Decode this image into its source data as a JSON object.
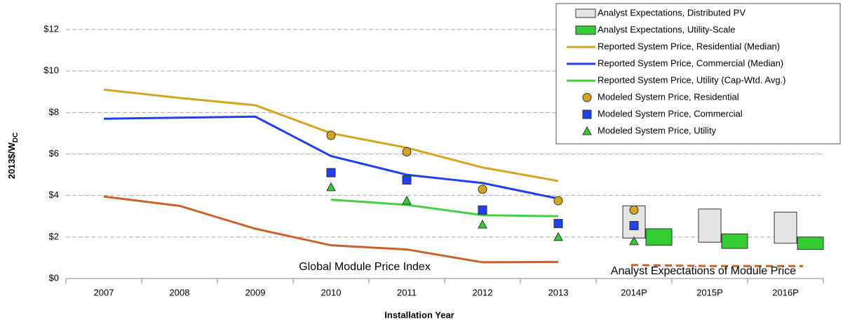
{
  "chart_data": {
    "type": "combo",
    "categories": [
      "2007",
      "2008",
      "2009",
      "2010",
      "2011",
      "2012",
      "2013",
      "2014P",
      "2015P",
      "2016P"
    ],
    "x_label": "Installation Year",
    "y_label": "2013$/W",
    "y_label_sub": "DC",
    "ylim": [
      0,
      12
    ],
    "yticks": [
      {
        "value": 0,
        "label": "$0"
      },
      {
        "value": 2,
        "label": "$2"
      },
      {
        "value": 4,
        "label": "$4"
      },
      {
        "value": 6,
        "label": "$6"
      },
      {
        "value": 8,
        "label": "$8"
      },
      {
        "value": 10,
        "label": "$10"
      },
      {
        "value": 12,
        "label": "$12"
      }
    ],
    "grid": true,
    "legend": "top-right",
    "series": [
      {
        "name": "Analyst Expectations, Distributed PV",
        "kind": "range",
        "offset": "left",
        "color": "#e6e6e6",
        "low": [
          null,
          null,
          null,
          null,
          null,
          null,
          null,
          1.95,
          1.75,
          1.7
        ],
        "high": [
          null,
          null,
          null,
          null,
          null,
          null,
          null,
          3.5,
          3.35,
          3.2
        ]
      },
      {
        "name": "Analyst Expectations, Utility-Scale",
        "kind": "range",
        "offset": "right",
        "color": "#33cc33",
        "low": [
          null,
          null,
          null,
          null,
          null,
          null,
          null,
          1.6,
          1.45,
          1.4
        ],
        "high": [
          null,
          null,
          null,
          null,
          null,
          null,
          null,
          2.4,
          2.15,
          2.0
        ]
      },
      {
        "name": "Reported System Price, Residential (Median)",
        "kind": "line",
        "color": "#d4a520",
        "values": [
          9.1,
          8.7,
          8.35,
          7.0,
          6.3,
          5.35,
          4.7,
          null,
          null,
          null
        ]
      },
      {
        "name": "Reported System Price, Commercial (Median)",
        "kind": "line",
        "color": "#1f3ff0",
        "values": [
          7.7,
          7.75,
          7.8,
          5.9,
          5.0,
          4.6,
          3.85,
          null,
          null,
          null
        ]
      },
      {
        "name": "Reported System Price, Utility (Cap-Wtd. Avg.)",
        "kind": "line",
        "color": "#44d044",
        "values": [
          null,
          null,
          null,
          3.8,
          3.55,
          3.05,
          3.0,
          null,
          null,
          null
        ]
      },
      {
        "name": "Modeled System Price, Residential",
        "kind": "circle",
        "color": "#d4a520",
        "values": [
          null,
          null,
          null,
          6.9,
          6.1,
          4.3,
          3.75,
          3.3,
          null,
          null
        ]
      },
      {
        "name": "Modeled System Price, Commercial",
        "kind": "square",
        "color": "#1f3ff0",
        "values": [
          null,
          null,
          null,
          5.1,
          4.75,
          3.3,
          2.65,
          2.55,
          null,
          null
        ]
      },
      {
        "name": "Modeled System Price, Utility",
        "kind": "triangle",
        "color": "#33cc33",
        "values": [
          null,
          null,
          null,
          4.4,
          3.75,
          2.6,
          2.0,
          1.8,
          null,
          null
        ]
      },
      {
        "name": "Global Module Price Index",
        "kind": "line",
        "annotate": true,
        "color": "#c8622a",
        "values": [
          3.95,
          3.5,
          2.4,
          1.6,
          1.4,
          0.78,
          0.8,
          null,
          null,
          null
        ]
      },
      {
        "name": "Analyst Expectations of Module Price",
        "kind": "dashed",
        "annotate": true,
        "color": "#c8622a",
        "values": [
          null,
          null,
          null,
          null,
          null,
          null,
          null,
          0.65,
          0.6,
          0.6
        ]
      }
    ]
  }
}
